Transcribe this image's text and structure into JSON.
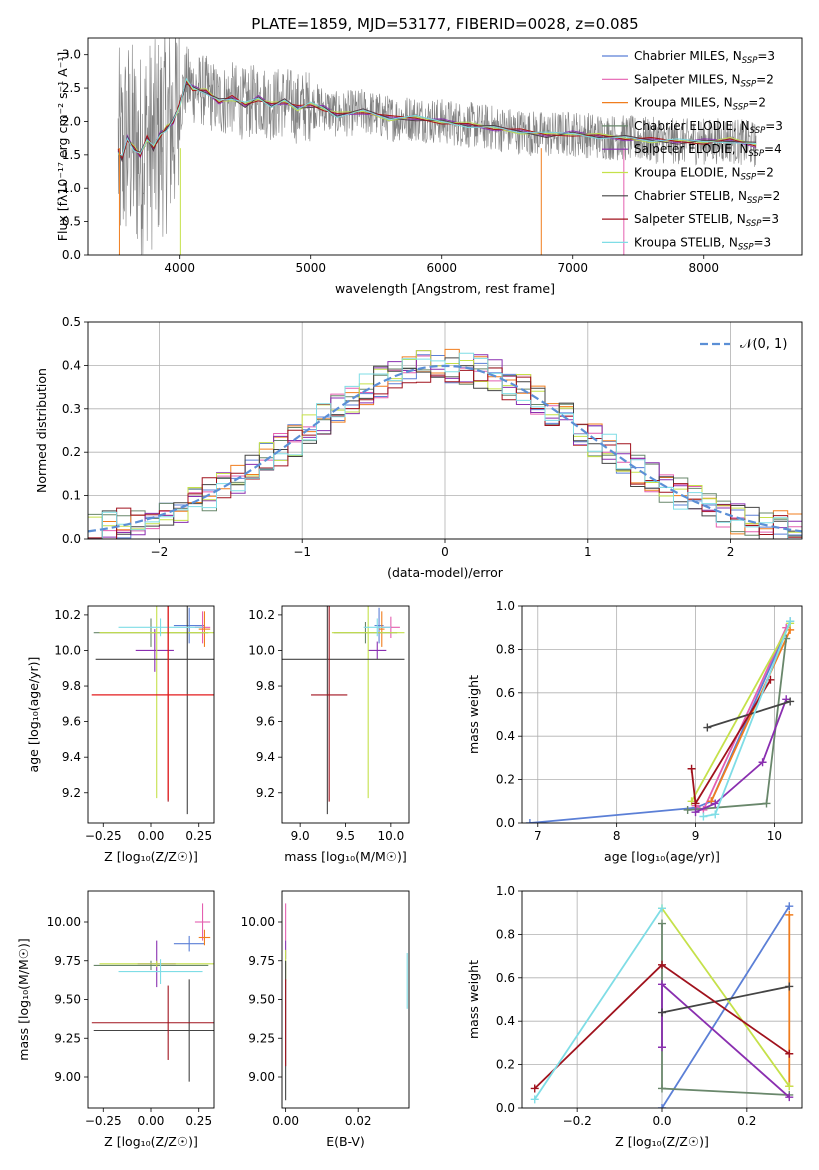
{
  "colors": {
    "Chabrier MILES": "#5b7fd6",
    "Salpeter MILES": "#e45fb0",
    "Kroupa MILES": "#f07d1e",
    "Chabrier ELODIE": "#69876b",
    "Salpeter ELODIE": "#8a2fb0",
    "Kroupa ELODIE": "#c5e14a",
    "Chabrier STELIB": "#444444",
    "Salpeter STELIB": "#a0121d",
    "Kroupa STELIB": "#7fdde6",
    "red": "#e81616",
    "gray": "#808080",
    "normal": "#5b8fd6"
  },
  "chart_data": [
    {
      "id": "spectrum",
      "type": "line",
      "title": "PLATE=1859, MJD=53177, FIBERID=0028, z=0.085",
      "xlabel": "wavelength [Angstrom, rest frame]",
      "ylabel": "Flux [fλ10⁻¹⁷ erg cm⁻² s⁻¹ A⁻¹]",
      "xlim": [
        3300,
        8750
      ],
      "ylim": [
        0,
        3.25
      ],
      "xticks": [
        "4000",
        "5000",
        "6000",
        "7000",
        "8000"
      ],
      "yticks": [
        "0.0",
        "0.5",
        "1.0",
        "1.5",
        "2.0",
        "2.5",
        "3.0"
      ],
      "legend_placement": "right",
      "series": [
        {
          "name": "Chabrier MILES",
          "nssp": "3"
        },
        {
          "name": "Salpeter MILES",
          "nssp": "2"
        },
        {
          "name": "Kroupa MILES",
          "nssp": "2"
        },
        {
          "name": "Chabrier ELODIE",
          "nssp": "3"
        },
        {
          "name": "Salpeter ELODIE",
          "nssp": "4"
        },
        {
          "name": "Kroupa ELODIE",
          "nssp": "2"
        },
        {
          "name": "Chabrier STELIB",
          "nssp": "2"
        },
        {
          "name": "Salpeter STELIB",
          "nssp": "3"
        },
        {
          "name": "Kroupa STELIB",
          "nssp": "3"
        }
      ],
      "model_continuum": {
        "x": [
          3530,
          3560,
          3600,
          3650,
          3700,
          3750,
          3800,
          3850,
          3900,
          3950,
          4000,
          4050,
          4100,
          4200,
          4300,
          4400,
          4500,
          4600,
          4700,
          4800,
          4900,
          5000,
          5100,
          5200,
          5400,
          5600,
          5800,
          6000,
          6200,
          6400,
          6600,
          6800,
          7000,
          7200,
          7400,
          7600,
          7800,
          8000,
          8200,
          8400
        ],
        "y": [
          1.55,
          1.45,
          1.75,
          1.6,
          1.5,
          1.75,
          1.6,
          1.8,
          1.9,
          2.0,
          2.25,
          2.6,
          2.5,
          2.45,
          2.3,
          2.35,
          2.25,
          2.35,
          2.25,
          2.3,
          2.2,
          2.25,
          2.2,
          2.1,
          2.15,
          2.05,
          2.05,
          2.0,
          1.95,
          1.9,
          1.85,
          1.8,
          1.82,
          1.78,
          1.75,
          1.72,
          1.7,
          1.7,
          1.72,
          1.65
        ]
      }
    },
    {
      "id": "residuals",
      "type": "bar",
      "xlabel": "(data-model)/error",
      "ylabel": "Normed distribution",
      "xlim": [
        -2.5,
        2.5
      ],
      "ylim": [
        0,
        0.5
      ],
      "xticks": [
        "−2",
        "−1",
        "0",
        "1",
        "2"
      ],
      "yticks": [
        "0.0",
        "0.1",
        "0.2",
        "0.3",
        "0.4",
        "0.5"
      ],
      "legend": "𝒩(0, 1)",
      "legend_placement": "top-right",
      "bin_width": 0.1
    },
    {
      "id": "age-z",
      "type": "scatter",
      "xlabel": "Z [log₁₀(Z/Z☉)]",
      "ylabel": "age  [log₁₀(age/yr)]",
      "xlim": [
        -0.33,
        0.33
      ],
      "ylim": [
        9.03,
        10.25
      ],
      "xticks": [
        "−0.25",
        "0.00",
        "0.25"
      ],
      "yticks": [
        "9.2",
        "9.4",
        "9.6",
        "9.8",
        "10.0",
        "10.2"
      ],
      "points": [
        {
          "series": "Chabrier MILES",
          "x": 0.2,
          "y": 10.14,
          "xerr": 0.08,
          "yerr": 0.1
        },
        {
          "series": "Salpeter MILES",
          "x": 0.27,
          "y": 10.13,
          "xerr": 0.04,
          "yerr": 0.09
        },
        {
          "series": "Kroupa MILES",
          "x": 0.28,
          "y": 10.12,
          "xerr": 0.03,
          "yerr": 0.1
        },
        {
          "series": "Chabrier ELODIE",
          "x": 0.0,
          "y": 10.1,
          "xerr": 0.3,
          "yerr": 0.08
        },
        {
          "series": "Salpeter ELODIE",
          "x": 0.02,
          "y": 10.0,
          "xerr": 0.1,
          "yerr": 0.12
        },
        {
          "series": "Kroupa ELODIE",
          "x": 0.03,
          "y": 10.1,
          "xerr": 0.3,
          "yerr": 0.93
        },
        {
          "series": "Chabrier STELIB",
          "x": 0.19,
          "y": 9.95,
          "xerr": 0.48,
          "yerr": 0.87
        },
        {
          "series": "Salpeter STELIB",
          "x": 0.09,
          "y": 9.75,
          "xerr": 0.4,
          "yerr": 0.6
        },
        {
          "series": "Kroupa STELIB",
          "x": 0.05,
          "y": 10.13,
          "xerr": 0.22,
          "yerr": 0.05
        },
        {
          "series": "red",
          "x": 0.09,
          "y": 9.75,
          "xerr": 0.4,
          "yerr": 0.59
        }
      ]
    },
    {
      "id": "age-mass",
      "type": "scatter",
      "xlabel": "mass [log₁₀(M/M☉)]",
      "xlim": [
        8.8,
        10.2
      ],
      "ylim": [
        9.03,
        10.25
      ],
      "xticks": [
        "9.0",
        "9.5",
        "10.0"
      ],
      "yticks": [
        "9.2",
        "9.4",
        "9.6",
        "9.8",
        "10.0",
        "10.2"
      ],
      "points": [
        {
          "series": "Chabrier MILES",
          "x": 9.87,
          "y": 10.14,
          "xerr": 0.05,
          "yerr": 0.1
        },
        {
          "series": "Salpeter MILES",
          "x": 10.0,
          "y": 10.13,
          "xerr": 0.1,
          "yerr": 0.06
        },
        {
          "series": "Kroupa MILES",
          "x": 9.9,
          "y": 10.12,
          "xerr": 0.03,
          "yerr": 0.1
        },
        {
          "series": "Chabrier ELODIE",
          "x": 9.72,
          "y": 10.1,
          "xerr": 0.35,
          "yerr": 0.06
        },
        {
          "series": "Salpeter ELODIE",
          "x": 9.85,
          "y": 10.0,
          "xerr": 0.1,
          "yerr": 0.05
        },
        {
          "series": "Kroupa ELODIE",
          "x": 9.75,
          "y": 10.1,
          "xerr": 0.4,
          "yerr": 0.93
        },
        {
          "series": "Chabrier STELIB",
          "x": 9.3,
          "y": 9.95,
          "xerr": 0.85,
          "yerr": 0.87
        },
        {
          "series": "Salpeter STELIB",
          "x": 9.32,
          "y": 9.75,
          "xerr": 0.2,
          "yerr": 0.6
        },
        {
          "series": "Kroupa STELIB",
          "x": 9.85,
          "y": 10.13,
          "xerr": 0.15,
          "yerr": 0.05
        }
      ]
    },
    {
      "id": "weight-age",
      "type": "line",
      "xlabel": "age  [log₁₀(age/yr)]",
      "ylabel": "mass weight",
      "xlim": [
        6.8,
        10.35
      ],
      "ylim": [
        0,
        1
      ],
      "xticks": [
        "7",
        "8",
        "9",
        "10"
      ],
      "yticks": [
        "0.0",
        "0.2",
        "0.4",
        "0.6",
        "0.8",
        "1.0"
      ],
      "series": [
        {
          "color": "Chabrier MILES",
          "x": [
            6.9,
            9.0,
            9.2,
            10.2
          ],
          "y": [
            0.0,
            0.07,
            0.1,
            0.93
          ]
        },
        {
          "color": "Salpeter MILES",
          "x": [
            9.0,
            9.1,
            10.15
          ],
          "y": [
            0.08,
            0.06,
            0.9
          ]
        },
        {
          "color": "Kroupa MILES",
          "x": [
            9.2,
            10.2
          ],
          "y": [
            0.1,
            0.89
          ]
        },
        {
          "color": "Chabrier ELODIE",
          "x": [
            8.9,
            9.9,
            10.15
          ],
          "y": [
            0.06,
            0.09,
            0.85
          ]
        },
        {
          "color": "Salpeter ELODIE",
          "x": [
            9.0,
            9.25,
            9.85,
            10.15
          ],
          "y": [
            0.05,
            0.09,
            0.28,
            0.57
          ]
        },
        {
          "color": "Kroupa ELODIE",
          "x": [
            8.95,
            10.2
          ],
          "y": [
            0.1,
            0.92
          ]
        },
        {
          "color": "Chabrier STELIB",
          "x": [
            9.15,
            10.2
          ],
          "y": [
            0.44,
            0.56
          ]
        },
        {
          "color": "Salpeter STELIB",
          "x": [
            8.95,
            9.0,
            9.95
          ],
          "y": [
            0.25,
            0.09,
            0.66
          ]
        },
        {
          "color": "Kroupa STELIB",
          "x": [
            9.1,
            9.25,
            10.2
          ],
          "y": [
            0.03,
            0.04,
            0.93
          ]
        }
      ]
    },
    {
      "id": "mass-z",
      "type": "scatter",
      "xlabel": "Z [log₁₀(Z/Z☉)]",
      "ylabel": "mass [log₁₀(M/M☉)]",
      "xlim": [
        -0.33,
        0.33
      ],
      "ylim": [
        8.8,
        10.2
      ],
      "xticks": [
        "−0.25",
        "0.00",
        "0.25"
      ],
      "yticks": [
        "9.00",
        "9.25",
        "9.50",
        "9.75",
        "10.00"
      ],
      "points": [
        {
          "series": "Chabrier MILES",
          "x": 0.2,
          "y": 9.86,
          "xerr": 0.08,
          "yerr": 0.05
        },
        {
          "series": "Salpeter MILES",
          "x": 0.27,
          "y": 10.0,
          "xerr": 0.04,
          "yerr": 0.12
        },
        {
          "series": "Kroupa MILES",
          "x": 0.28,
          "y": 9.9,
          "xerr": 0.03,
          "yerr": 0.05
        },
        {
          "series": "Chabrier ELODIE",
          "x": 0.0,
          "y": 9.72,
          "xerr": 0.3,
          "yerr": 0.03
        },
        {
          "series": "Salpeter ELODIE",
          "x": 0.03,
          "y": 9.73,
          "xerr": 0.1,
          "yerr": 0.15
        },
        {
          "series": "Kroupa ELODIE",
          "x": 0.03,
          "y": 9.73,
          "xerr": 0.3,
          "yerr": 0.02
        },
        {
          "series": "Chabrier STELIB",
          "x": 0.2,
          "y": 9.3,
          "xerr": 0.5,
          "yerr": 0.33
        },
        {
          "series": "Salpeter STELIB",
          "x": 0.09,
          "y": 9.35,
          "xerr": 0.4,
          "yerr": 0.24
        },
        {
          "series": "Kroupa STELIB",
          "x": 0.05,
          "y": 9.68,
          "xerr": 0.22,
          "yerr": 0.08
        }
      ]
    },
    {
      "id": "mass-ebv",
      "type": "scatter",
      "xlabel": "E(B-V)",
      "xlim": [
        -0.001,
        0.034
      ],
      "ylim": [
        8.8,
        10.2
      ],
      "xticks": [
        "0.00",
        "0.02"
      ],
      "yticks": [
        "9.00",
        "9.25",
        "9.50",
        "9.75",
        "10.00"
      ],
      "points": [
        {
          "series": "Salpeter MILES",
          "x": 0.0,
          "y": 10.0,
          "xerr": 0,
          "yerr": 0.12
        },
        {
          "series": "Salpeter ELODIE",
          "x": 0.0,
          "y": 9.82,
          "xerr": 0,
          "yerr": 0.06
        },
        {
          "series": "Kroupa ELODIE",
          "x": 0.0,
          "y": 9.72,
          "xerr": 0,
          "yerr": 0.1
        },
        {
          "series": "Chabrier STELIB",
          "x": 0.0,
          "y": 9.3,
          "xerr": 0,
          "yerr": 0.45
        },
        {
          "series": "Salpeter STELIB",
          "x": 0.0,
          "y": 9.35,
          "xerr": 0,
          "yerr": 0.28
        },
        {
          "series": "Kroupa STELIB",
          "x": 0.0335,
          "y": 9.62,
          "xerr": 0,
          "yerr": 0.18
        }
      ]
    },
    {
      "id": "weight-z",
      "type": "line",
      "xlabel": "Z [log₁₀(Z/Z☉)]",
      "ylabel": "mass weight",
      "xlim": [
        -0.33,
        0.33
      ],
      "ylim": [
        0,
        1
      ],
      "xticks": [
        "−0.2",
        "0.0",
        "0.2"
      ],
      "yticks": [
        "0.0",
        "0.2",
        "0.4",
        "0.6",
        "0.8",
        "1.0"
      ],
      "series": [
        {
          "color": "Chabrier MILES",
          "x": [
            0.0,
            0.3
          ],
          "y": [
            0.0,
            0.93
          ]
        },
        {
          "color": "Kroupa MILES",
          "x": [
            0.3,
            0.3
          ],
          "y": [
            0.1,
            0.89
          ]
        },
        {
          "color": "Chabrier ELODIE",
          "x": [
            0.0,
            0.0,
            0.3
          ],
          "y": [
            0.85,
            0.09,
            0.06
          ]
        },
        {
          "color": "Salpeter ELODIE",
          "x": [
            0.0,
            0.0,
            0.3
          ],
          "y": [
            0.28,
            0.57,
            0.05
          ]
        },
        {
          "color": "Kroupa ELODIE",
          "x": [
            0.0,
            0.3
          ],
          "y": [
            0.92,
            0.1
          ]
        },
        {
          "color": "Chabrier STELIB",
          "x": [
            0.0,
            0.3
          ],
          "y": [
            0.44,
            0.56
          ]
        },
        {
          "color": "Salpeter STELIB",
          "x": [
            -0.3,
            0.0,
            0.3
          ],
          "y": [
            0.09,
            0.66,
            0.25
          ]
        },
        {
          "color": "Kroupa STELIB",
          "x": [
            -0.3,
            0.0
          ],
          "y": [
            0.04,
            0.92
          ]
        }
      ]
    }
  ]
}
